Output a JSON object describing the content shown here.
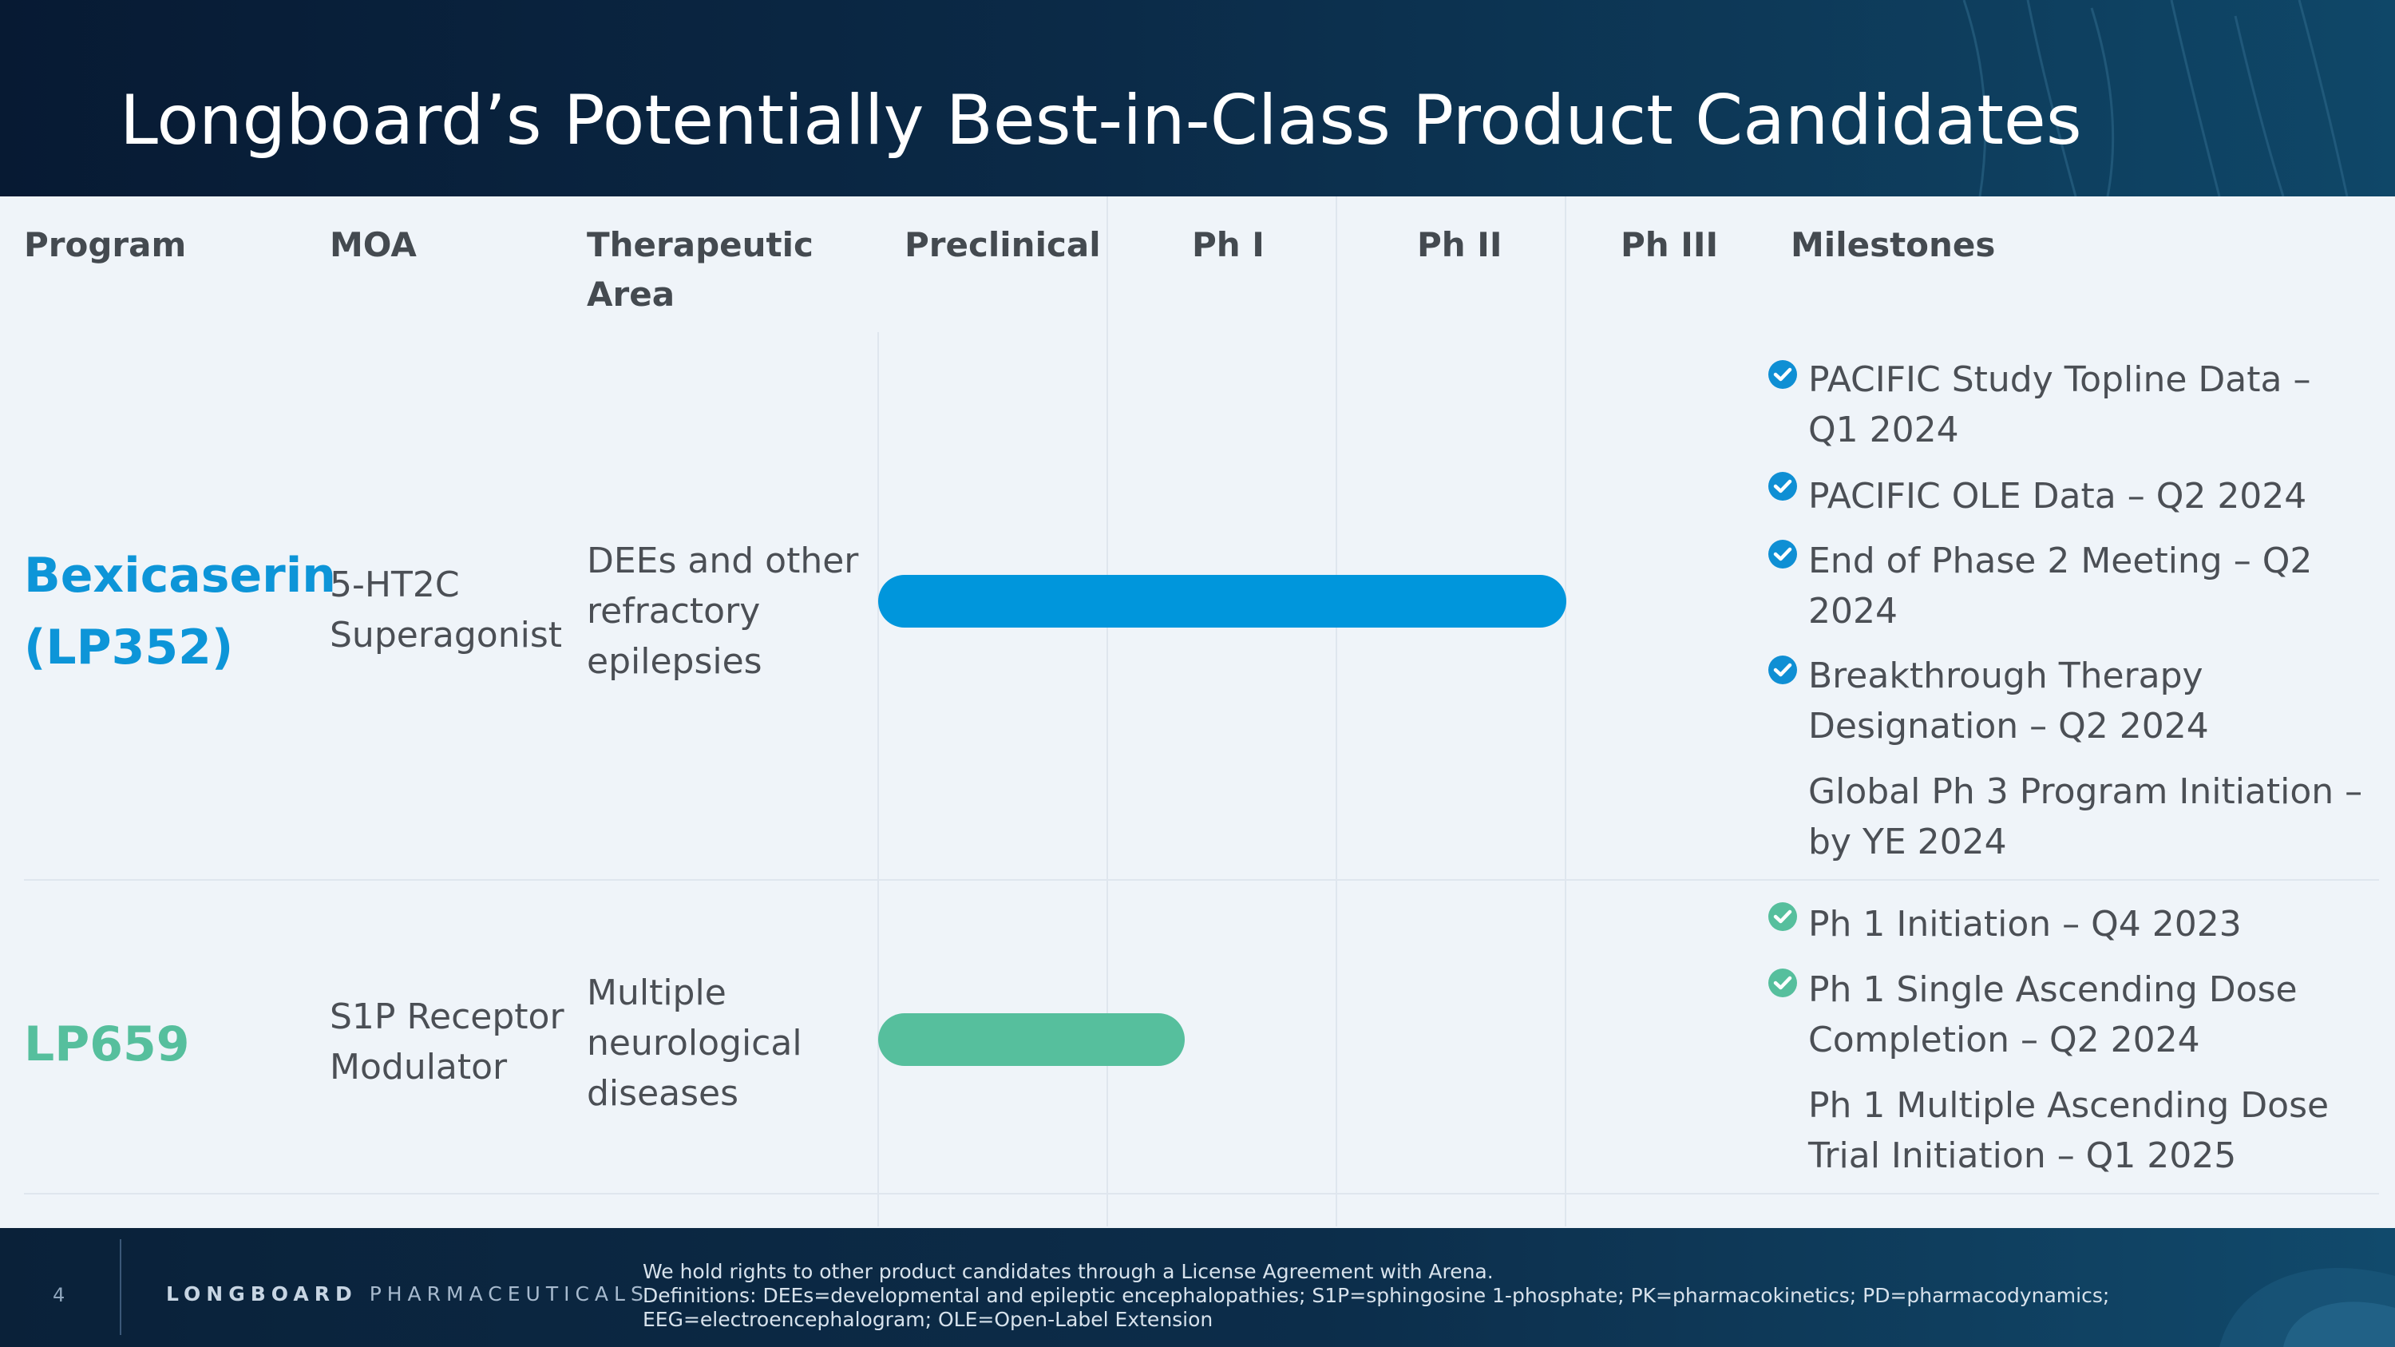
{
  "title": "Longboard’s Potentially Best-in-Class Product Candidates",
  "columns": {
    "program": "Program",
    "moa": "MOA",
    "therapeutic_line1": "Therapeutic",
    "therapeutic_line2": "Area",
    "preclinical": "Preclinical",
    "ph1": "Ph I",
    "ph2": "Ph II",
    "ph3": "Ph III",
    "milestones": "Milestones"
  },
  "rows": [
    {
      "program_line1": "Bexicaserin",
      "program_line2": "(LP352)",
      "program_color": "#0d95d8",
      "moa_line1": "5-HT2C",
      "moa_line2": "Superagonist",
      "area_line1": "DEEs and other",
      "area_line2": "refractory",
      "area_line3": "epilepsies",
      "bar_color": "#0096dc",
      "bar_stage": "Ph II (complete)",
      "milestones": [
        {
          "line1": "PACIFIC Study Topline Data –",
          "line2": "Q1 2024",
          "completed": true
        },
        {
          "line1": "PACIFIC OLE Data – Q2 2024",
          "line2": "",
          "completed": true
        },
        {
          "line1": "End of Phase 2 Meeting – Q2",
          "line2": "2024",
          "completed": true
        },
        {
          "line1": "Breakthrough Therapy",
          "line2": "Designation – Q2 2024",
          "completed": true
        },
        {
          "line1": "Global Ph 3 Program Initiation –",
          "line2": "by YE 2024",
          "completed": false
        }
      ]
    },
    {
      "program_line1": "LP659",
      "program_color": "#56bf9d",
      "moa_line1": "S1P Receptor",
      "moa_line2": "Modulator",
      "area_line1": "Multiple",
      "area_line2": "neurological",
      "area_line3": "diseases",
      "bar_color": "#56bf9d",
      "bar_stage": "Ph I (in progress)",
      "milestones": [
        {
          "line1": "Ph 1 Initiation – Q4 2023",
          "line2": "",
          "completed": true
        },
        {
          "line1": "Ph 1 Single Ascending Dose",
          "line2": "Completion – Q2 2024",
          "completed": true
        },
        {
          "line1": "Ph 1 Multiple Ascending Dose",
          "line2": "Trial Initiation – Q1 2025",
          "completed": false
        }
      ]
    }
  ],
  "footer": {
    "page_number": "4",
    "logo_bold": "LONGBOARD",
    "logo_light": "PHARMACEUTICALS",
    "note1": "We hold rights to other product candidates through a License Agreement with Arena.",
    "note2": "Definitions: DEEs=developmental and epileptic encephalopathies; S1P=sphingosine 1-phosphate; PK=pharmacokinetics; PD=pharmacodynamics;",
    "note3": "EEG=electroencephalogram; OLE=Open-Label Extension"
  }
}
